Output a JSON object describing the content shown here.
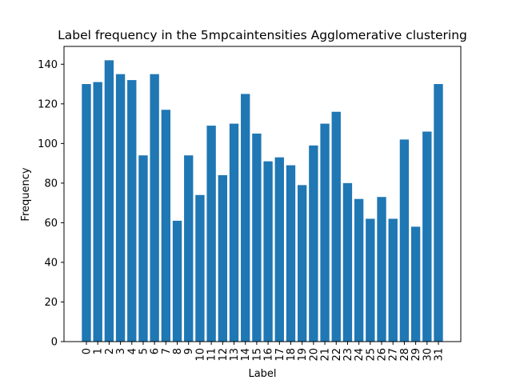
{
  "chart_data": {
    "type": "bar",
    "title": "Label frequency in the 5mpcaintensities Agglomerative clustering",
    "xlabel": "Label",
    "ylabel": "Frequency",
    "categories": [
      "0",
      "1",
      "2",
      "3",
      "4",
      "5",
      "6",
      "7",
      "8",
      "9",
      "10",
      "11",
      "12",
      "13",
      "14",
      "15",
      "16",
      "17",
      "18",
      "19",
      "20",
      "21",
      "22",
      "23",
      "24",
      "25",
      "26",
      "27",
      "28",
      "29",
      "30",
      "31"
    ],
    "values": [
      130,
      131,
      142,
      135,
      132,
      94,
      135,
      117,
      61,
      94,
      74,
      109,
      84,
      110,
      125,
      105,
      91,
      93,
      89,
      79,
      99,
      110,
      116,
      80,
      72,
      62,
      73,
      62,
      102,
      58,
      106,
      130
    ],
    "yticks": [
      "0",
      "20",
      "40",
      "60",
      "80",
      "100",
      "120",
      "140"
    ],
    "ylim": [
      0,
      149
    ],
    "bar_color": "#1f77b4",
    "grid": false,
    "legend": "none"
  }
}
